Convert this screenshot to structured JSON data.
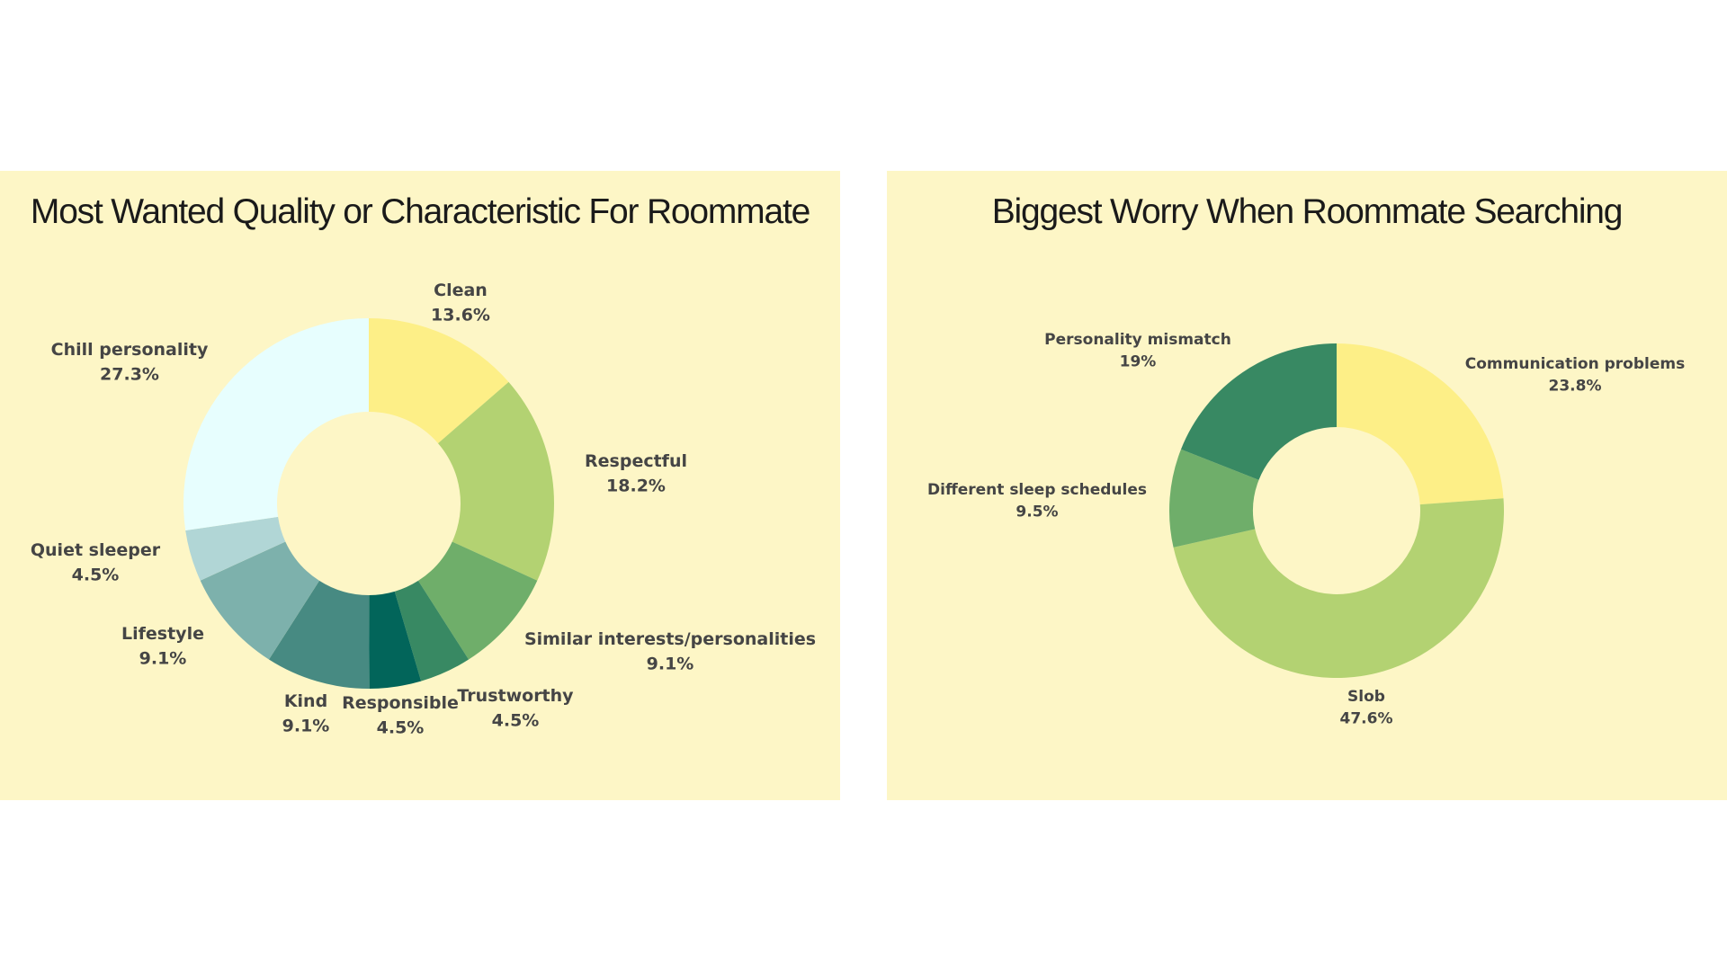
{
  "chart_data": [
    {
      "type": "pie",
      "donut": true,
      "title": "Most Wanted Quality or Characteristic For Roommate",
      "slices": [
        {
          "label": "Clean",
          "value_label": "13.6%",
          "value": 13.6,
          "color": "#fdef87"
        },
        {
          "label": "Respectful",
          "value_label": "18.2%",
          "value": 18.2,
          "color": "#b3d272"
        },
        {
          "label": "Similar interests/personalities",
          "value_label": "9.1%",
          "value": 9.1,
          "color": "#6fae6a"
        },
        {
          "label": "Trustworthy",
          "value_label": "4.5%",
          "value": 4.5,
          "color": "#388963"
        },
        {
          "label": "Responsible",
          "value_label": "4.5%",
          "value": 4.5,
          "color": "#02655a"
        },
        {
          "label": "Kind",
          "value_label": "9.1%",
          "value": 9.1,
          "color": "#478a82"
        },
        {
          "label": "Lifestyle",
          "value_label": "9.1%",
          "value": 9.1,
          "color": "#7db1ac"
        },
        {
          "label": "Quiet sleeper",
          "value_label": "4.5%",
          "value": 4.5,
          "color": "#b1d6d6"
        },
        {
          "label": "Chill personality",
          "value_label": "27.3%",
          "value": 27.3,
          "color": "#e7fefe"
        }
      ]
    },
    {
      "type": "pie",
      "donut": true,
      "title": "Biggest Worry When Roommate Searching",
      "slices": [
        {
          "label": "Communication problems",
          "value_label": "23.8%",
          "value": 23.8,
          "color": "#fdef87"
        },
        {
          "label": "Slob",
          "value_label": "47.6%",
          "value": 47.6,
          "color": "#b3d272"
        },
        {
          "label": "Different sleep schedules",
          "value_label": "9.5%",
          "value": 9.5,
          "color": "#6fae6a"
        },
        {
          "label": "Personality mismatch",
          "value_label": "19%",
          "value": 19,
          "color": "#388963"
        }
      ]
    }
  ]
}
